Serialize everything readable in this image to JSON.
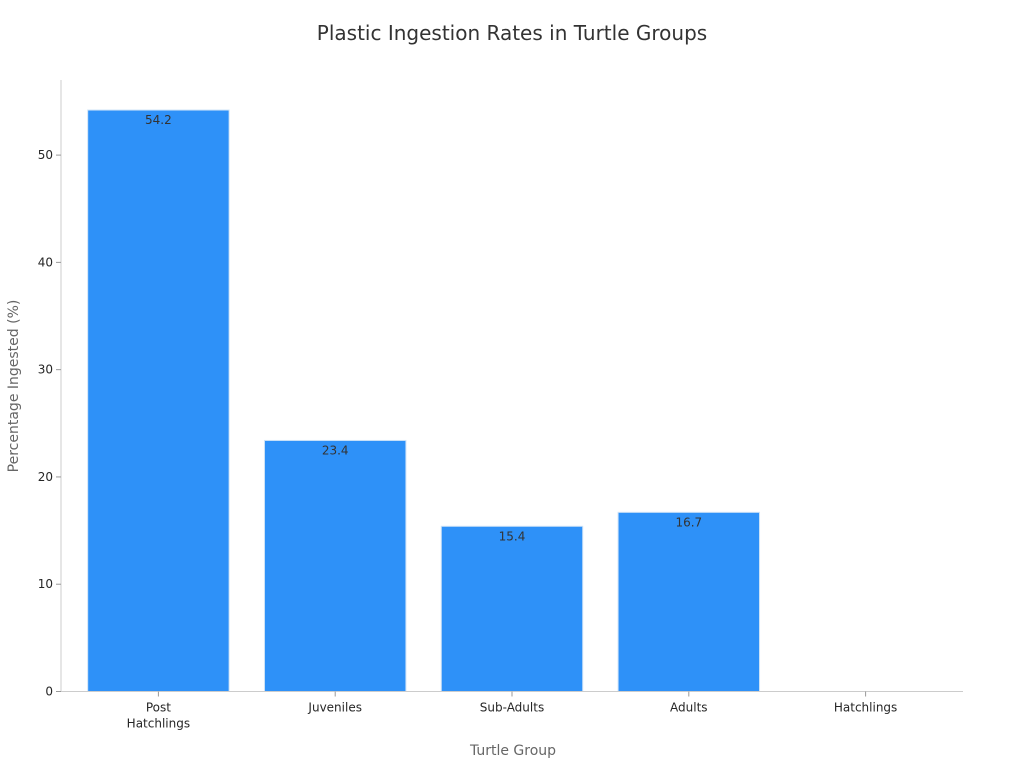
{
  "chart_data": {
    "type": "bar",
    "title": "Plastic Ingestion Rates in Turtle Groups",
    "xlabel": "Turtle Group",
    "ylabel": "Percentage Ingested (%)",
    "categories": [
      [
        "Post",
        "Hatchlings"
      ],
      [
        "Juveniles"
      ],
      [
        "Sub-Adults"
      ],
      [
        "Adults"
      ],
      [
        "Hatchlings"
      ]
    ],
    "values": [
      54.2,
      23.4,
      15.4,
      16.7,
      0
    ],
    "data_labels": [
      "54.2",
      "23.4",
      "15.4",
      "16.7",
      ""
    ],
    "ylim": [
      0,
      57
    ],
    "yticks": [
      0,
      10,
      20,
      30,
      40,
      50
    ],
    "grid": false,
    "bar_color": "#2e91f8",
    "bar_edge_color": "#cfe3f7"
  }
}
